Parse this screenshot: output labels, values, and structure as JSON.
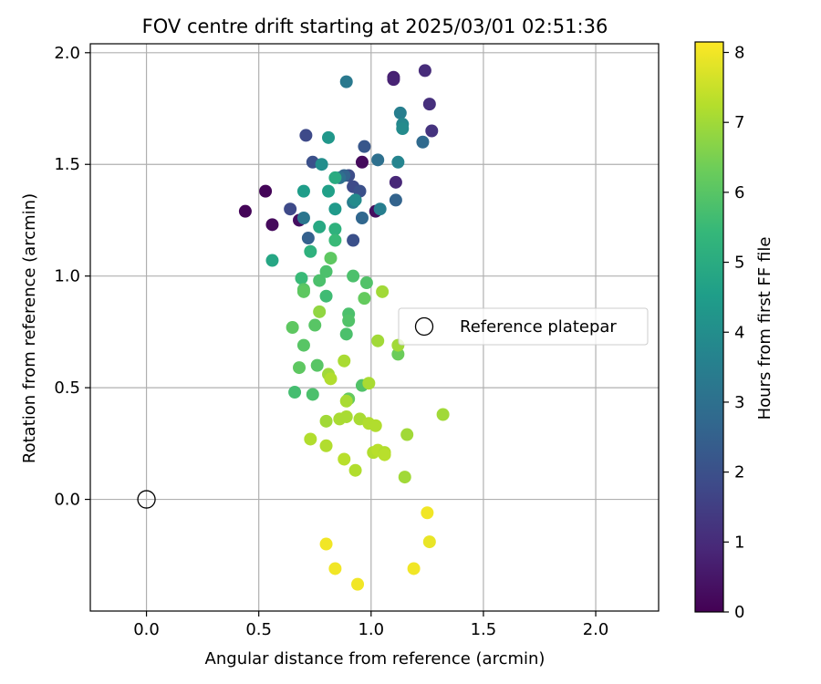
{
  "chart_data": {
    "type": "scatter",
    "title": "FOV centre drift starting at 2025/03/01 02:51:36",
    "xlabel": "Angular distance from reference (arcmin)",
    "ylabel": "Rotation from reference (arcmin)",
    "xlim": [
      -0.25,
      2.28
    ],
    "ylim": [
      -0.5,
      2.04
    ],
    "xticks": [
      0.0,
      0.5,
      1.0,
      1.5,
      2.0
    ],
    "xtick_labels": [
      "0.0",
      "0.5",
      "1.0",
      "1.5",
      "2.0"
    ],
    "yticks": [
      0.0,
      0.5,
      1.0,
      1.5,
      2.0
    ],
    "ytick_labels": [
      "0.0",
      "0.5",
      "1.0",
      "1.5",
      "2.0"
    ],
    "grid": true,
    "legend": {
      "placement": "center-right",
      "entries": [
        "Reference platepar"
      ]
    },
    "reference_point": {
      "name": "Reference platepar",
      "x": 0.0,
      "y": 0.0
    },
    "colorbar": {
      "label": "Hours from first FF file",
      "colormap": "viridis",
      "range": [
        0,
        8.15
      ],
      "ticks": [
        0,
        1,
        2,
        3,
        4,
        5,
        6,
        7,
        8
      ],
      "tick_labels": [
        "0",
        "1",
        "2",
        "3",
        "4",
        "5",
        "6",
        "7",
        "8"
      ]
    },
    "points": [
      {
        "x": 0.44,
        "y": 1.29,
        "h": 0.1
      },
      {
        "x": 0.53,
        "y": 1.38,
        "h": 0.1
      },
      {
        "x": 0.56,
        "y": 1.23,
        "h": 0.2
      },
      {
        "x": 0.68,
        "y": 1.25,
        "h": 0.3
      },
      {
        "x": 0.96,
        "y": 1.51,
        "h": 0.2
      },
      {
        "x": 1.02,
        "y": 1.29,
        "h": 0.3
      },
      {
        "x": 1.1,
        "y": 1.89,
        "h": 0.7
      },
      {
        "x": 1.1,
        "y": 1.88,
        "h": 0.8
      },
      {
        "x": 1.11,
        "y": 1.42,
        "h": 0.9
      },
      {
        "x": 1.24,
        "y": 1.92,
        "h": 1.0
      },
      {
        "x": 1.26,
        "y": 1.77,
        "h": 1.1
      },
      {
        "x": 1.27,
        "y": 1.65,
        "h": 1.2
      },
      {
        "x": 0.71,
        "y": 1.63,
        "h": 1.8
      },
      {
        "x": 0.64,
        "y": 1.3,
        "h": 1.8
      },
      {
        "x": 0.74,
        "y": 1.51,
        "h": 2.0
      },
      {
        "x": 0.9,
        "y": 1.45,
        "h": 1.9
      },
      {
        "x": 0.92,
        "y": 1.4,
        "h": 1.8
      },
      {
        "x": 0.95,
        "y": 1.38,
        "h": 2.0
      },
      {
        "x": 0.97,
        "y": 1.58,
        "h": 2.2
      },
      {
        "x": 0.92,
        "y": 1.16,
        "h": 2.0
      },
      {
        "x": 0.72,
        "y": 1.17,
        "h": 2.5
      },
      {
        "x": 0.96,
        "y": 1.26,
        "h": 2.7
      },
      {
        "x": 1.23,
        "y": 1.6,
        "h": 2.8
      },
      {
        "x": 1.11,
        "y": 1.34,
        "h": 2.6
      },
      {
        "x": 1.03,
        "y": 1.52,
        "h": 3.0
      },
      {
        "x": 0.88,
        "y": 1.45,
        "h": 2.6
      },
      {
        "x": 0.86,
        "y": 1.44,
        "h": 3.0
      },
      {
        "x": 0.89,
        "y": 1.87,
        "h": 3.3
      },
      {
        "x": 0.7,
        "y": 1.26,
        "h": 3.2
      },
      {
        "x": 0.92,
        "y": 1.33,
        "h": 3.4
      },
      {
        "x": 1.04,
        "y": 1.3,
        "h": 3.5
      },
      {
        "x": 1.13,
        "y": 1.73,
        "h": 3.5
      },
      {
        "x": 1.12,
        "y": 1.51,
        "h": 3.7
      },
      {
        "x": 1.14,
        "y": 1.68,
        "h": 3.8
      },
      {
        "x": 1.14,
        "y": 1.66,
        "h": 3.9
      },
      {
        "x": 0.78,
        "y": 1.5,
        "h": 4.0
      },
      {
        "x": 0.93,
        "y": 1.34,
        "h": 3.9
      },
      {
        "x": 0.81,
        "y": 1.62,
        "h": 4.3
      },
      {
        "x": 0.84,
        "y": 1.3,
        "h": 4.4
      },
      {
        "x": 0.7,
        "y": 1.38,
        "h": 4.5
      },
      {
        "x": 0.81,
        "y": 1.38,
        "h": 4.6
      },
      {
        "x": 0.56,
        "y": 1.07,
        "h": 4.8
      },
      {
        "x": 0.77,
        "y": 1.22,
        "h": 4.9
      },
      {
        "x": 0.84,
        "y": 1.44,
        "h": 5.0
      },
      {
        "x": 0.73,
        "y": 1.11,
        "h": 5.2
      },
      {
        "x": 0.84,
        "y": 1.21,
        "h": 5.2
      },
      {
        "x": 0.84,
        "y": 1.16,
        "h": 5.5
      },
      {
        "x": 0.69,
        "y": 0.99,
        "h": 5.5
      },
      {
        "x": 0.8,
        "y": 1.02,
        "h": 5.8
      },
      {
        "x": 0.77,
        "y": 0.98,
        "h": 5.8
      },
      {
        "x": 0.8,
        "y": 0.91,
        "h": 5.6
      },
      {
        "x": 0.92,
        "y": 1.0,
        "h": 5.8
      },
      {
        "x": 0.98,
        "y": 0.97,
        "h": 5.9
      },
      {
        "x": 0.82,
        "y": 1.08,
        "h": 6.1
      },
      {
        "x": 0.7,
        "y": 0.94,
        "h": 6.0
      },
      {
        "x": 0.7,
        "y": 0.93,
        "h": 6.1
      },
      {
        "x": 0.97,
        "y": 0.9,
        "h": 6.2
      },
      {
        "x": 0.9,
        "y": 0.83,
        "h": 5.8
      },
      {
        "x": 0.9,
        "y": 0.8,
        "h": 5.9
      },
      {
        "x": 0.65,
        "y": 0.77,
        "h": 6.1
      },
      {
        "x": 0.75,
        "y": 0.78,
        "h": 6.0
      },
      {
        "x": 0.89,
        "y": 0.74,
        "h": 5.8
      },
      {
        "x": 0.7,
        "y": 0.69,
        "h": 6.0
      },
      {
        "x": 0.68,
        "y": 0.59,
        "h": 6.1
      },
      {
        "x": 0.76,
        "y": 0.6,
        "h": 6.0
      },
      {
        "x": 0.66,
        "y": 0.48,
        "h": 5.7
      },
      {
        "x": 0.74,
        "y": 0.47,
        "h": 5.8
      },
      {
        "x": 0.96,
        "y": 0.51,
        "h": 5.9
      },
      {
        "x": 0.9,
        "y": 0.45,
        "h": 6.2
      },
      {
        "x": 1.12,
        "y": 0.65,
        "h": 6.3
      },
      {
        "x": 0.77,
        "y": 0.84,
        "h": 6.8
      },
      {
        "x": 1.05,
        "y": 0.93,
        "h": 7.0
      },
      {
        "x": 1.03,
        "y": 0.71,
        "h": 7.0
      },
      {
        "x": 1.12,
        "y": 0.69,
        "h": 7.0
      },
      {
        "x": 0.88,
        "y": 0.62,
        "h": 7.1
      },
      {
        "x": 0.81,
        "y": 0.56,
        "h": 7.0
      },
      {
        "x": 0.82,
        "y": 0.54,
        "h": 7.2
      },
      {
        "x": 0.99,
        "y": 0.52,
        "h": 7.1
      },
      {
        "x": 0.89,
        "y": 0.44,
        "h": 7.1
      },
      {
        "x": 0.8,
        "y": 0.35,
        "h": 7.0
      },
      {
        "x": 0.86,
        "y": 0.36,
        "h": 7.1
      },
      {
        "x": 0.89,
        "y": 0.37,
        "h": 7.1
      },
      {
        "x": 0.95,
        "y": 0.36,
        "h": 7.1
      },
      {
        "x": 0.99,
        "y": 0.34,
        "h": 7.2
      },
      {
        "x": 1.02,
        "y": 0.33,
        "h": 7.2
      },
      {
        "x": 1.16,
        "y": 0.29,
        "h": 7.0
      },
      {
        "x": 1.32,
        "y": 0.38,
        "h": 7.0
      },
      {
        "x": 0.73,
        "y": 0.27,
        "h": 7.2
      },
      {
        "x": 0.8,
        "y": 0.24,
        "h": 7.2
      },
      {
        "x": 0.88,
        "y": 0.18,
        "h": 7.3
      },
      {
        "x": 0.93,
        "y": 0.13,
        "h": 7.2
      },
      {
        "x": 1.01,
        "y": 0.21,
        "h": 7.2
      },
      {
        "x": 1.03,
        "y": 0.22,
        "h": 7.3
      },
      {
        "x": 1.06,
        "y": 0.21,
        "h": 7.2
      },
      {
        "x": 1.06,
        "y": 0.2,
        "h": 7.3
      },
      {
        "x": 1.15,
        "y": 0.1,
        "h": 7.0
      },
      {
        "x": 1.25,
        "y": -0.06,
        "h": 8.0
      },
      {
        "x": 1.26,
        "y": -0.19,
        "h": 7.9
      },
      {
        "x": 0.8,
        "y": -0.2,
        "h": 8.0
      },
      {
        "x": 0.84,
        "y": -0.31,
        "h": 8.0
      },
      {
        "x": 1.19,
        "y": -0.31,
        "h": 8.0
      },
      {
        "x": 0.94,
        "y": -0.38,
        "h": 8.0
      }
    ]
  }
}
